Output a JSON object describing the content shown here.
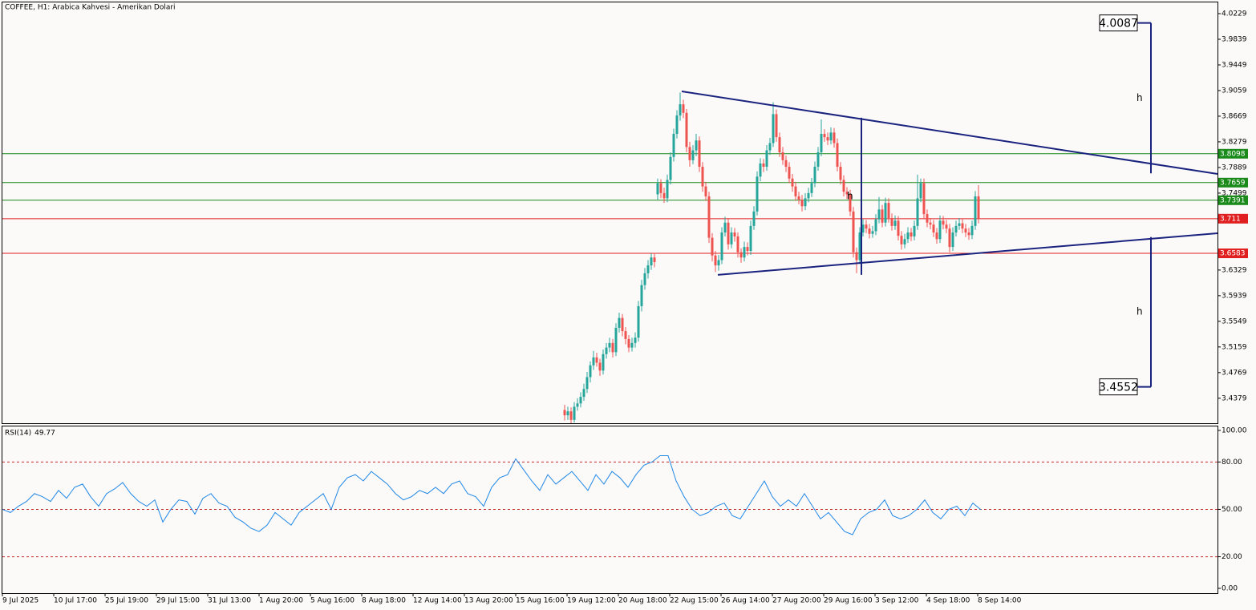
{
  "chart_data": [
    {
      "type": "candlestick",
      "title": "COFFEE, H1:  Arabica Kahvesi - Amerikan Dolari",
      "ylim": [
        3.3999,
        4.0412
      ],
      "yticks": [
        4.0229,
        3.9839,
        3.9449,
        3.9059,
        3.8669,
        3.8279,
        3.7889,
        3.7499,
        3.6329,
        3.5939,
        3.5549,
        3.5159,
        3.4769,
        3.4379
      ],
      "xlabels": [
        "9 Jul 2025",
        "10 Jul 17:00",
        "25 Jul 19:00",
        "29 Jul 15:00",
        "31 Jul 13:00",
        "1 Aug 20:00",
        "5 Aug 16:00",
        "8 Aug 18:00",
        "12 Aug 14:00",
        "13 Aug 20:00",
        "15 Aug 16:00",
        "19 Aug 12:00",
        "20 Aug 18:00",
        "22 Aug 15:00",
        "26 Aug 14:00",
        "27 Aug 20:00",
        "29 Aug 16:00",
        "3 Sep 12:00",
        "4 Sep 18:00",
        "8 Sep 14:00"
      ],
      "up_color": "#26a69a",
      "down_color": "#ef5350",
      "candles": [
        [
          3.42,
          3.428,
          3.404,
          3.412
        ],
        [
          3.412,
          3.425,
          3.405,
          3.418
        ],
        [
          3.418,
          3.424,
          3.398,
          3.405
        ],
        [
          3.405,
          3.432,
          3.401,
          3.425
        ],
        [
          3.425,
          3.438,
          3.419,
          3.43
        ],
        [
          3.43,
          3.447,
          3.424,
          3.44
        ],
        [
          3.44,
          3.46,
          3.434,
          3.452
        ],
        [
          3.452,
          3.478,
          3.446,
          3.47
        ],
        [
          3.47,
          3.494,
          3.462,
          3.488
        ],
        [
          3.488,
          3.51,
          3.481,
          3.5
        ],
        [
          3.5,
          3.507,
          3.486,
          3.492
        ],
        [
          3.492,
          3.498,
          3.472,
          3.48
        ],
        [
          3.48,
          3.512,
          3.474,
          3.505
        ],
        [
          3.505,
          3.522,
          3.498,
          3.515
        ],
        [
          3.515,
          3.53,
          3.508,
          3.522
        ],
        [
          3.522,
          3.528,
          3.5,
          3.508
        ],
        [
          3.508,
          3.552,
          3.502,
          3.545
        ],
        [
          3.545,
          3.568,
          3.538,
          3.56
        ],
        [
          3.56,
          3.566,
          3.532,
          3.54
        ],
        [
          3.54,
          3.546,
          3.52,
          3.528
        ],
        [
          3.528,
          3.534,
          3.508,
          3.515
        ],
        [
          3.515,
          3.53,
          3.509,
          3.522
        ],
        [
          3.522,
          3.538,
          3.515,
          3.53
        ],
        [
          3.53,
          3.586,
          3.524,
          3.578
        ],
        [
          3.578,
          3.618,
          3.57,
          3.61
        ],
        [
          3.61,
          3.636,
          3.603,
          3.628
        ],
        [
          3.628,
          3.648,
          3.62,
          3.64
        ],
        [
          3.64,
          3.658,
          3.633,
          3.652
        ],
        [
          3.652,
          3.659,
          3.637,
          3.645
        ],
        [
          3.748,
          3.772,
          3.74,
          3.765
        ],
        [
          3.765,
          3.771,
          3.742,
          3.75
        ],
        [
          3.75,
          3.758,
          3.735,
          3.742
        ],
        [
          3.742,
          3.778,
          3.736,
          3.77
        ],
        [
          3.77,
          3.812,
          3.763,
          3.805
        ],
        [
          3.805,
          3.848,
          3.798,
          3.84
        ],
        [
          3.84,
          3.876,
          3.833,
          3.868
        ],
        [
          3.868,
          3.903,
          3.86,
          3.885
        ],
        [
          3.885,
          3.892,
          3.864,
          3.872
        ],
        [
          3.872,
          3.878,
          3.812,
          3.82
        ],
        [
          3.82,
          3.828,
          3.79,
          3.8
        ],
        [
          3.8,
          3.823,
          3.794,
          3.815
        ],
        [
          3.815,
          3.84,
          3.806,
          3.83
        ],
        [
          3.83,
          3.836,
          3.782,
          3.79
        ],
        [
          3.79,
          3.797,
          3.752,
          3.76
        ],
        [
          3.76,
          3.767,
          3.738,
          3.745
        ],
        [
          3.745,
          3.752,
          3.674,
          3.682
        ],
        [
          3.682,
          3.689,
          3.646,
          3.655
        ],
        [
          3.655,
          3.662,
          3.63,
          3.64
        ],
        [
          3.64,
          3.656,
          3.632,
          3.648
        ],
        [
          3.648,
          3.698,
          3.642,
          3.69
        ],
        [
          3.69,
          3.714,
          3.684,
          3.705
        ],
        [
          3.705,
          3.712,
          3.664,
          3.672
        ],
        [
          3.672,
          3.698,
          3.666,
          3.69
        ],
        [
          3.69,
          3.697,
          3.676,
          3.684
        ],
        [
          3.684,
          3.69,
          3.652,
          3.66
        ],
        [
          3.66,
          3.666,
          3.644,
          3.652
        ],
        [
          3.652,
          3.676,
          3.646,
          3.668
        ],
        [
          3.668,
          3.675,
          3.655,
          3.662
        ],
        [
          3.662,
          3.708,
          3.656,
          3.7
        ],
        [
          3.7,
          3.73,
          3.694,
          3.722
        ],
        [
          3.722,
          3.783,
          3.716,
          3.775
        ],
        [
          3.775,
          3.803,
          3.768,
          3.795
        ],
        [
          3.795,
          3.802,
          3.782,
          3.79
        ],
        [
          3.79,
          3.823,
          3.784,
          3.815
        ],
        [
          3.815,
          3.834,
          3.808,
          3.826
        ],
        [
          3.826,
          3.888,
          3.82,
          3.87
        ],
        [
          3.87,
          3.877,
          3.828,
          3.835
        ],
        [
          3.835,
          3.842,
          3.805,
          3.812
        ],
        [
          3.812,
          3.82,
          3.793,
          3.8
        ],
        [
          3.8,
          3.807,
          3.782,
          3.79
        ],
        [
          3.79,
          3.797,
          3.765,
          3.772
        ],
        [
          3.772,
          3.779,
          3.752,
          3.76
        ],
        [
          3.76,
          3.767,
          3.738,
          3.745
        ],
        [
          3.745,
          3.752,
          3.733,
          3.74
        ],
        [
          3.74,
          3.747,
          3.722,
          3.73
        ],
        [
          3.73,
          3.75,
          3.724,
          3.742
        ],
        [
          3.742,
          3.758,
          3.736,
          3.75
        ],
        [
          3.75,
          3.773,
          3.744,
          3.765
        ],
        [
          3.765,
          3.798,
          3.759,
          3.79
        ],
        [
          3.79,
          3.82,
          3.784,
          3.812
        ],
        [
          3.812,
          3.862,
          3.806,
          3.84
        ],
        [
          3.84,
          3.847,
          3.828,
          3.835
        ],
        [
          3.835,
          3.842,
          3.823,
          3.83
        ],
        [
          3.83,
          3.85,
          3.824,
          3.842
        ],
        [
          3.842,
          3.849,
          3.819,
          3.826
        ],
        [
          3.826,
          3.833,
          3.783,
          3.79
        ],
        [
          3.79,
          3.797,
          3.763,
          3.77
        ],
        [
          3.77,
          3.777,
          3.745,
          3.752
        ],
        [
          3.752,
          3.759,
          3.741,
          3.748
        ],
        [
          3.748,
          3.755,
          3.715,
          3.722
        ],
        [
          3.722,
          3.729,
          3.652,
          3.66
        ],
        [
          3.66,
          3.667,
          3.628,
          3.648
        ],
        [
          3.648,
          3.698,
          3.642,
          3.69
        ],
        [
          3.69,
          3.71,
          3.684,
          3.702
        ],
        [
          3.702,
          3.709,
          3.689,
          3.696
        ],
        [
          3.696,
          3.703,
          3.681,
          3.688
        ],
        [
          3.688,
          3.7,
          3.682,
          3.692
        ],
        [
          3.692,
          3.718,
          3.686,
          3.71
        ],
        [
          3.71,
          3.744,
          3.704,
          3.725
        ],
        [
          3.725,
          3.732,
          3.698,
          3.705
        ],
        [
          3.705,
          3.743,
          3.699,
          3.735
        ],
        [
          3.735,
          3.742,
          3.705,
          3.712
        ],
        [
          3.712,
          3.719,
          3.693,
          3.7
        ],
        [
          3.7,
          3.716,
          3.694,
          3.708
        ],
        [
          3.708,
          3.715,
          3.678,
          3.685
        ],
        [
          3.685,
          3.692,
          3.664,
          3.672
        ],
        [
          3.672,
          3.688,
          3.666,
          3.68
        ],
        [
          3.68,
          3.698,
          3.674,
          3.69
        ],
        [
          3.69,
          3.697,
          3.677,
          3.684
        ],
        [
          3.684,
          3.708,
          3.678,
          3.7
        ],
        [
          3.7,
          3.778,
          3.694,
          3.742
        ],
        [
          3.742,
          3.772,
          3.736,
          3.765
        ],
        [
          3.765,
          3.772,
          3.711,
          3.718
        ],
        [
          3.718,
          3.725,
          3.698,
          3.705
        ],
        [
          3.705,
          3.712,
          3.695,
          3.702
        ],
        [
          3.702,
          3.709,
          3.683,
          3.69
        ],
        [
          3.69,
          3.697,
          3.673,
          3.68
        ],
        [
          3.68,
          3.716,
          3.674,
          3.708
        ],
        [
          3.708,
          3.715,
          3.695,
          3.702
        ],
        [
          3.702,
          3.709,
          3.689,
          3.696
        ],
        [
          3.696,
          3.703,
          3.66,
          3.668
        ],
        [
          3.668,
          3.698,
          3.662,
          3.69
        ],
        [
          3.69,
          3.708,
          3.684,
          3.7
        ],
        [
          3.7,
          3.712,
          3.694,
          3.704
        ],
        [
          3.704,
          3.711,
          3.689,
          3.696
        ],
        [
          3.696,
          3.703,
          3.683,
          3.69
        ],
        [
          3.69,
          3.697,
          3.679,
          3.686
        ],
        [
          3.686,
          3.708,
          3.68,
          3.7
        ],
        [
          3.7,
          3.753,
          3.694,
          3.745
        ],
        [
          3.745,
          3.762,
          3.704,
          3.711
        ]
      ],
      "levels": [
        {
          "value": 3.8098,
          "color": "#1a8a1a"
        },
        {
          "value": 3.7659,
          "color": "#1a8a1a"
        },
        {
          "value": 3.7391,
          "color": "#1a8a1a"
        },
        {
          "value": 3.711,
          "color": "#e02020"
        },
        {
          "value": 3.6583,
          "color": "#e02020"
        }
      ],
      "trendlines": [
        {
          "x": [
            36.5,
            203.5
          ],
          "y": [
            3.9047,
            3.7791
          ]
        },
        {
          "x": [
            47.75,
            203.5
          ],
          "y": [
            3.6256,
            3.6889
          ]
        }
      ],
      "measures": [
        {
          "x": 92.5,
          "from": 3.8645,
          "to": 3.6256,
          "label": "h"
        },
        {
          "x": 182.75,
          "from": 3.78,
          "to": 4.0087,
          "label": "h",
          "target": 4.0087
        },
        {
          "x": 182.75,
          "from": 3.683,
          "to": 3.4552,
          "label": "h",
          "target": 3.4552
        }
      ]
    },
    {
      "type": "line",
      "ylim": [
        -3.05,
        102.5
      ],
      "yticks": [
        {
          "value": 100,
          "label": "100.00"
        },
        {
          "value": 80,
          "label": "80.00"
        },
        {
          "value": 50,
          "label": "50.00"
        },
        {
          "value": 20,
          "label": "20.00"
        },
        {
          "value": 0,
          "label": "0.00"
        }
      ],
      "levels": [
        80,
        50,
        20
      ],
      "series": [
        {
          "name": "RSI(14)",
          "color": "#1e88e5",
          "values": [
            50,
            48,
            52,
            55,
            60,
            58,
            55,
            62,
            57,
            64,
            66,
            58,
            52,
            60,
            63,
            67,
            60,
            55,
            52,
            56,
            42,
            50,
            56,
            55,
            47,
            57,
            60,
            54,
            52,
            45,
            42,
            38,
            36,
            40,
            48,
            44,
            40,
            48,
            52,
            56,
            60,
            50,
            64,
            70,
            72,
            68,
            74,
            70,
            66,
            60,
            56,
            58,
            62,
            60,
            64,
            60,
            66,
            68,
            60,
            58,
            52,
            64,
            70,
            72,
            82,
            75,
            68,
            62,
            72,
            66,
            70,
            74,
            68,
            62,
            72,
            66,
            74,
            70,
            64,
            72,
            78,
            80,
            84,
            84,
            68,
            58,
            50,
            46,
            48,
            52,
            54,
            46,
            44,
            52,
            60,
            68,
            58,
            52,
            56,
            52,
            60,
            52,
            44,
            48,
            42,
            36,
            34,
            44,
            48,
            50,
            56,
            46,
            44,
            46,
            50,
            56,
            48,
            44,
            50,
            52,
            46,
            54,
            49.77
          ]
        }
      ]
    }
  ]
}
